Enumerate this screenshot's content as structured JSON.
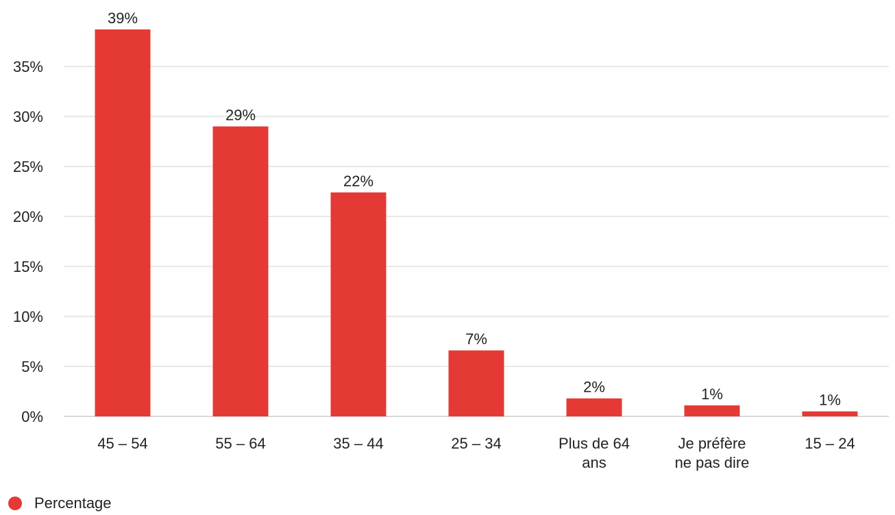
{
  "chart_data": {
    "type": "bar",
    "categories": [
      [
        "45 – 54"
      ],
      [
        "55 – 64"
      ],
      [
        "35 – 44"
      ],
      [
        "25 – 34"
      ],
      [
        "Plus de 64",
        "ans"
      ],
      [
        "Je préfère",
        "ne pas dire"
      ],
      [
        "15 – 24"
      ]
    ],
    "series": [
      {
        "name": "Percentage",
        "values": [
          38.7,
          29.0,
          22.4,
          6.6,
          1.8,
          1.1,
          0.5
        ],
        "labels": [
          "39%",
          "29%",
          "22%",
          "7%",
          "2%",
          "1%",
          "1%"
        ]
      }
    ],
    "yticks": [
      0,
      5,
      10,
      15,
      20,
      25,
      30,
      35
    ],
    "ytick_labels": [
      "0%",
      "5%",
      "10%",
      "15%",
      "20%",
      "25%",
      "30%",
      "35%"
    ],
    "ylim": [
      0,
      40
    ],
    "grid": true,
    "legend_position": "bottom-left",
    "bar_color": "#e53935",
    "grid_color": "#e0e0e0",
    "axis_color": "#cccccc"
  }
}
